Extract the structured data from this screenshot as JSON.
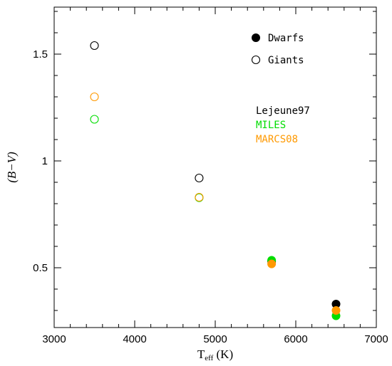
{
  "chart_data": {
    "type": "scatter",
    "title": "",
    "xlabel": {
      "base": "T",
      "sub": "eff",
      "rest": " (K)"
    },
    "ylabel": "(B−V)",
    "xlim": [
      3000,
      7000
    ],
    "ylim": [
      0.22,
      1.72
    ],
    "xticks": [
      3000,
      4000,
      5000,
      6000,
      7000
    ],
    "xtick_labels": [
      "3000",
      "4000",
      "5000",
      "6000",
      "7000"
    ],
    "yticks": [
      0.5,
      1.0,
      1.5
    ],
    "ytick_labels": [
      "0.5",
      "1",
      "1.5"
    ],
    "grid": false,
    "legend": {
      "placement": "top-right",
      "markers": [
        {
          "label": "Dwarfs",
          "style": "filled"
        },
        {
          "label": "Giants",
          "style": "open"
        }
      ],
      "models": [
        {
          "label": "Lejeune97",
          "color": "#000000"
        },
        {
          "label": "MILES",
          "color": "#00dd00"
        },
        {
          "label": "MARCS08",
          "color": "#ff9900"
        }
      ]
    },
    "series": [
      {
        "name": "Lejeune97",
        "color": "#000000",
        "dwarfs": [
          {
            "x": 5700,
            "y": 0.53
          },
          {
            "x": 6500,
            "y": 0.33
          }
        ],
        "giants": [
          {
            "x": 3500,
            "y": 1.54
          },
          {
            "x": 4800,
            "y": 0.92
          }
        ]
      },
      {
        "name": "MILES",
        "color": "#00dd00",
        "dwarfs": [
          {
            "x": 5700,
            "y": 0.535
          },
          {
            "x": 6500,
            "y": 0.275
          }
        ],
        "giants": [
          {
            "x": 3500,
            "y": 1.195
          },
          {
            "x": 4800,
            "y": 0.828
          }
        ]
      },
      {
        "name": "MARCS08",
        "color": "#ff9900",
        "dwarfs": [
          {
            "x": 5700,
            "y": 0.518
          },
          {
            "x": 6500,
            "y": 0.3
          }
        ],
        "giants": [
          {
            "x": 3500,
            "y": 1.3
          },
          {
            "x": 4800,
            "y": 0.83
          }
        ]
      }
    ]
  }
}
